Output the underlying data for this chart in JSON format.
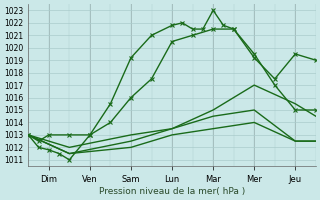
{
  "title": "",
  "xlabel": "Pression niveau de la mer( hPa )",
  "ylabel": "",
  "background_color": "#cbe8e8",
  "grid_color": "#aacccc",
  "line_color": "#1a6b1a",
  "xlim": [
    0,
    14
  ],
  "ylim": [
    1010.5,
    1023.5
  ],
  "yticks": [
    1011,
    1012,
    1013,
    1014,
    1015,
    1016,
    1017,
    1018,
    1019,
    1020,
    1021,
    1022,
    1023
  ],
  "xtick_labels": [
    "Dim",
    "Ven",
    "Sam",
    "Lun",
    "Mar",
    "Mer",
    "Jeu"
  ],
  "xtick_positions": [
    1,
    3,
    5,
    7,
    9,
    11,
    13
  ],
  "series": [
    {
      "x": [
        0,
        0.5,
        1,
        1.5,
        2,
        3,
        4,
        5,
        6,
        7,
        7.5,
        8,
        8.5,
        9,
        9.5,
        10,
        11,
        12,
        13,
        14
      ],
      "y": [
        1013,
        1012,
        1011.8,
        1011.5,
        1011,
        1013,
        1015.5,
        1019.2,
        1021,
        1021.8,
        1022,
        1021.5,
        1021.5,
        1023,
        1021.8,
        1021.5,
        1019.2,
        1017.5,
        1019.5,
        1019
      ],
      "marker": "x",
      "linewidth": 1.0,
      "markersize": 3
    },
    {
      "x": [
        0,
        0.5,
        1,
        2,
        3,
        4,
        5,
        6,
        7,
        8,
        9,
        10,
        11,
        12,
        13,
        14
      ],
      "y": [
        1013,
        1012.5,
        1013,
        1013,
        1013,
        1014,
        1016,
        1017.5,
        1020.5,
        1021,
        1021.5,
        1021.5,
        1019.5,
        1017,
        1015,
        1015
      ],
      "marker": "x",
      "linewidth": 1.0,
      "markersize": 3
    },
    {
      "x": [
        0,
        2,
        5,
        7,
        9,
        11,
        13,
        14
      ],
      "y": [
        1013,
        1012,
        1013,
        1013.5,
        1015,
        1017,
        1015.5,
        1014.5
      ],
      "marker": null,
      "linewidth": 1.0,
      "markersize": 0
    },
    {
      "x": [
        0,
        2,
        5,
        7,
        9,
        11,
        13,
        14
      ],
      "y": [
        1013,
        1011.5,
        1012.5,
        1013.5,
        1014.5,
        1015,
        1012.5,
        1012.5
      ],
      "marker": null,
      "linewidth": 1.0,
      "markersize": 0
    },
    {
      "x": [
        0,
        2,
        5,
        7,
        9,
        11,
        13,
        14
      ],
      "y": [
        1013,
        1011.5,
        1012,
        1013,
        1013.5,
        1014,
        1012.5,
        1012.5
      ],
      "marker": null,
      "linewidth": 1.0,
      "markersize": 0
    }
  ]
}
